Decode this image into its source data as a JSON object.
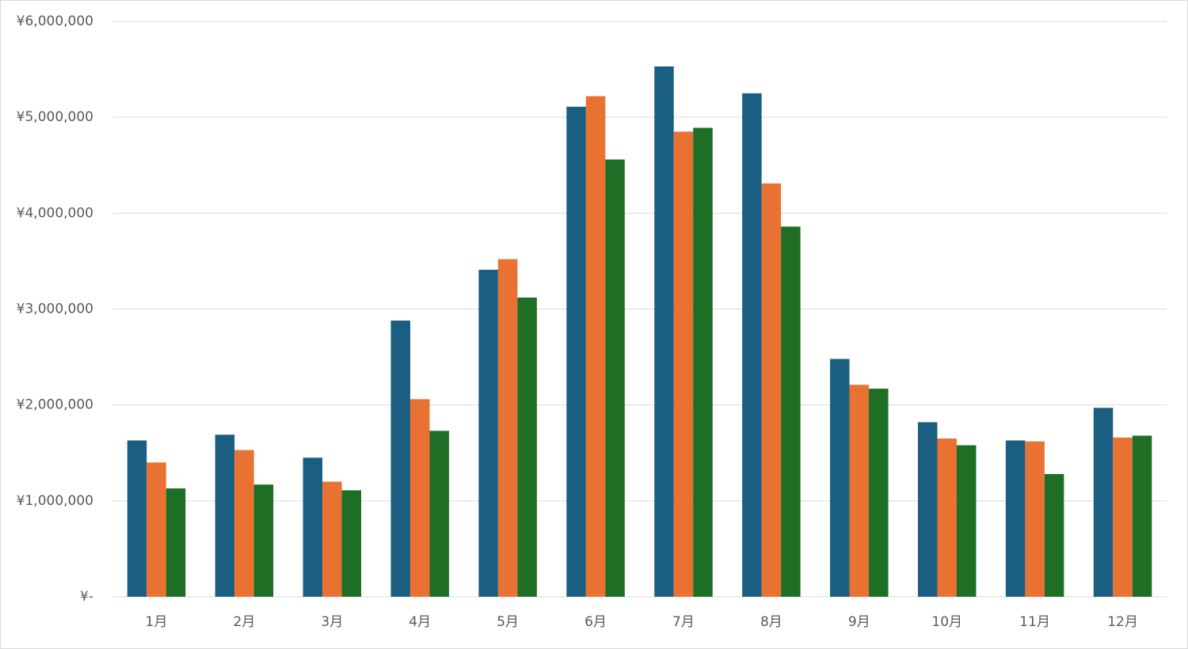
{
  "chart_data": {
    "type": "bar",
    "categories": [
      "1月",
      "2月",
      "3月",
      "4月",
      "5月",
      "6月",
      "7月",
      "8月",
      "9月",
      "10月",
      "11月",
      "12月"
    ],
    "series": [
      {
        "color": "#1a5f82",
        "values": [
          1630000,
          1690000,
          1450000,
          2880000,
          3410000,
          5110000,
          5530000,
          5250000,
          2480000,
          1820000,
          1630000,
          1970000
        ]
      },
      {
        "color": "#e97131",
        "values": [
          1400000,
          1530000,
          1200000,
          2060000,
          3520000,
          5220000,
          4850000,
          4310000,
          2210000,
          1650000,
          1620000,
          1660000
        ]
      },
      {
        "color": "#1e6e25",
        "values": [
          1130000,
          1170000,
          1110000,
          1730000,
          3120000,
          4560000,
          4890000,
          3860000,
          2170000,
          1580000,
          1280000,
          1680000
        ]
      }
    ],
    "ylim": [
      0,
      6000000
    ],
    "yticks": [
      {
        "value": 0,
        "label": "¥-"
      },
      {
        "value": 1000000,
        "label": "¥1,000,000"
      },
      {
        "value": 2000000,
        "label": "¥2,000,000"
      },
      {
        "value": 3000000,
        "label": "¥3,000,000"
      },
      {
        "value": 4000000,
        "label": "¥4,000,000"
      },
      {
        "value": 5000000,
        "label": "¥5,000,000"
      },
      {
        "value": 6000000,
        "label": "¥6,000,000"
      }
    ],
    "grid": true
  }
}
